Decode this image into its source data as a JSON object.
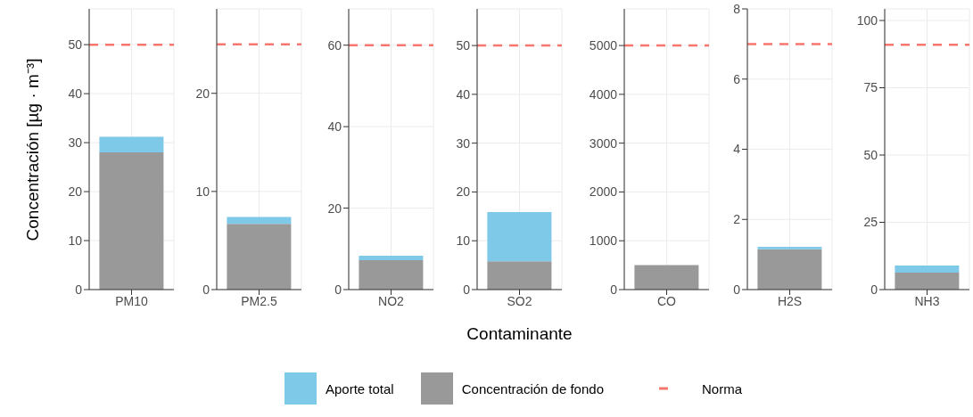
{
  "chart_data": [
    {
      "type": "bar",
      "stacked": true,
      "categories": [
        "PM10"
      ],
      "ylabel": "Concentración [µg · m⁻³]",
      "legend": "bottom",
      "grid": true,
      "ylim": [
        0,
        57.3
      ],
      "yticks": [
        0,
        10,
        20,
        30,
        40,
        50
      ],
      "series": [
        {
          "name": "Concentración de fondo",
          "color": "#999999",
          "values": [
            28
          ]
        },
        {
          "name": "Aporte total",
          "color": "#7ec8e8",
          "values": [
            3.2
          ]
        }
      ],
      "ref_lines": [
        {
          "axis": "y",
          "value": 50,
          "label": "Norma",
          "color": "#f8766d",
          "line_style": "dashed"
        }
      ]
    },
    {
      "type": "bar",
      "stacked": true,
      "categories": [
        "PM2.5"
      ],
      "grid": true,
      "ylim": [
        0,
        28.6
      ],
      "yticks": [
        0,
        10,
        20
      ],
      "series": [
        {
          "color": "#999999",
          "values": [
            6.7
          ]
        },
        {
          "color": "#7ec8e8",
          "values": [
            0.7
          ]
        }
      ],
      "ref_lines": [
        {
          "axis": "y",
          "value": 25,
          "color": "#f8766d",
          "line_style": "dashed"
        }
      ]
    },
    {
      "type": "bar",
      "stacked": true,
      "categories": [
        "NO2"
      ],
      "grid": true,
      "ylim": [
        0,
        68.9
      ],
      "yticks": [
        0,
        20,
        40,
        60
      ],
      "series": [
        {
          "color": "#999999",
          "values": [
            7.2
          ]
        },
        {
          "color": "#7ec8e8",
          "values": [
            1.1
          ]
        }
      ],
      "ref_lines": [
        {
          "axis": "y",
          "value": 60,
          "color": "#f8766d",
          "line_style": "dashed"
        }
      ]
    },
    {
      "type": "bar",
      "stacked": true,
      "categories": [
        "SO2"
      ],
      "xlabel": "Contaminante",
      "grid": true,
      "ylim": [
        0,
        57.5
      ],
      "yticks": [
        0,
        10,
        20,
        30,
        40,
        50
      ],
      "series": [
        {
          "color": "#999999",
          "values": [
            5.8
          ]
        },
        {
          "color": "#7ec8e8",
          "values": [
            10.1
          ]
        }
      ],
      "ref_lines": [
        {
          "axis": "y",
          "value": 50,
          "color": "#f8766d",
          "line_style": "dashed"
        }
      ]
    },
    {
      "type": "bar",
      "stacked": true,
      "categories": [
        "CO"
      ],
      "grid": true,
      "ylim": [
        0,
        5750
      ],
      "yticks": [
        0,
        1000,
        2000,
        3000,
        4000,
        5000
      ],
      "series": [
        {
          "color": "#999999",
          "values": [
            500
          ]
        },
        {
          "color": "#7ec8e8",
          "values": [
            0
          ]
        }
      ],
      "ref_lines": [
        {
          "axis": "y",
          "value": 5000,
          "color": "#f8766d",
          "line_style": "dashed"
        }
      ]
    },
    {
      "type": "bar",
      "stacked": true,
      "categories": [
        "H2S"
      ],
      "grid": true,
      "ylim": [
        0,
        8
      ],
      "yticks": [
        0,
        2,
        4,
        6,
        8
      ],
      "series": [
        {
          "color": "#999999",
          "values": [
            1.15
          ]
        },
        {
          "color": "#7ec8e8",
          "values": [
            0.07
          ]
        }
      ],
      "ref_lines": [
        {
          "axis": "y",
          "value": 7,
          "color": "#f8766d",
          "line_style": "dashed"
        }
      ]
    },
    {
      "type": "bar",
      "stacked": true,
      "categories": [
        "NH3"
      ],
      "grid": true,
      "ylim": [
        0,
        104.3
      ],
      "yticks": [
        0,
        25,
        50,
        75,
        100
      ],
      "series": [
        {
          "color": "#999999",
          "values": [
            6.3
          ]
        },
        {
          "color": "#7ec8e8",
          "values": [
            2.6
          ]
        }
      ],
      "ref_lines": [
        {
          "axis": "y",
          "value": 91,
          "color": "#f8766d",
          "line_style": "dashed"
        }
      ]
    }
  ]
}
